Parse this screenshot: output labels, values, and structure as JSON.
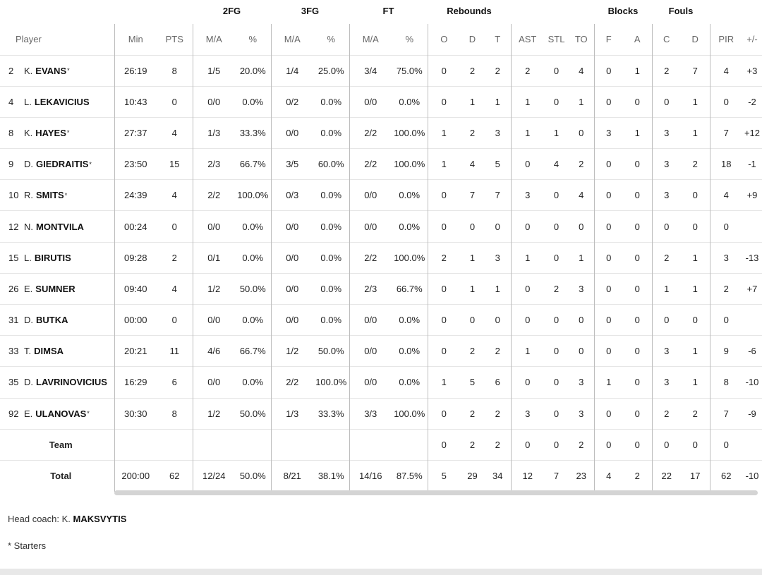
{
  "group_headers": {
    "two_fg": "2FG",
    "three_fg": "3FG",
    "ft": "FT",
    "rebounds": "Rebounds",
    "blocks": "Blocks",
    "fouls": "Fouls"
  },
  "columns": {
    "player": "Player",
    "min": "Min",
    "pts": "PTS",
    "fg2_ma": "M/A",
    "fg2_pct": "%",
    "fg3_ma": "M/A",
    "fg3_pct": "%",
    "ft_ma": "M/A",
    "ft_pct": "%",
    "reb_o": "O",
    "reb_d": "D",
    "reb_t": "T",
    "ast": "AST",
    "stl": "STL",
    "to": "TO",
    "blk_f": "F",
    "blk_a": "A",
    "foul_c": "C",
    "foul_d": "D",
    "pir": "PIR",
    "pm": "+/-"
  },
  "players": [
    {
      "num": "2",
      "initial": "K.",
      "name": "EVANS",
      "starter": true,
      "min": "26:19",
      "pts": "8",
      "fg2_ma": "1/5",
      "fg2_pct": "20.0%",
      "fg3_ma": "1/4",
      "fg3_pct": "25.0%",
      "ft_ma": "3/4",
      "ft_pct": "75.0%",
      "reb_o": "0",
      "reb_d": "2",
      "reb_t": "2",
      "ast": "2",
      "stl": "0",
      "to": "4",
      "blk_f": "0",
      "blk_a": "1",
      "foul_c": "2",
      "foul_d": "7",
      "pir": "4",
      "pm": "+3"
    },
    {
      "num": "4",
      "initial": "L.",
      "name": "LEKAVICIUS",
      "starter": false,
      "min": "10:43",
      "pts": "0",
      "fg2_ma": "0/0",
      "fg2_pct": "0.0%",
      "fg3_ma": "0/2",
      "fg3_pct": "0.0%",
      "ft_ma": "0/0",
      "ft_pct": "0.0%",
      "reb_o": "0",
      "reb_d": "1",
      "reb_t": "1",
      "ast": "1",
      "stl": "0",
      "to": "1",
      "blk_f": "0",
      "blk_a": "0",
      "foul_c": "0",
      "foul_d": "1",
      "pir": "0",
      "pm": "-2"
    },
    {
      "num": "8",
      "initial": "K.",
      "name": "HAYES",
      "starter": true,
      "min": "27:37",
      "pts": "4",
      "fg2_ma": "1/3",
      "fg2_pct": "33.3%",
      "fg3_ma": "0/0",
      "fg3_pct": "0.0%",
      "ft_ma": "2/2",
      "ft_pct": "100.0%",
      "reb_o": "1",
      "reb_d": "2",
      "reb_t": "3",
      "ast": "1",
      "stl": "1",
      "to": "0",
      "blk_f": "3",
      "blk_a": "1",
      "foul_c": "3",
      "foul_d": "1",
      "pir": "7",
      "pm": "+12"
    },
    {
      "num": "9",
      "initial": "D.",
      "name": "GIEDRAITIS",
      "starter": true,
      "min": "23:50",
      "pts": "15",
      "fg2_ma": "2/3",
      "fg2_pct": "66.7%",
      "fg3_ma": "3/5",
      "fg3_pct": "60.0%",
      "ft_ma": "2/2",
      "ft_pct": "100.0%",
      "reb_o": "1",
      "reb_d": "4",
      "reb_t": "5",
      "ast": "0",
      "stl": "4",
      "to": "2",
      "blk_f": "0",
      "blk_a": "0",
      "foul_c": "3",
      "foul_d": "2",
      "pir": "18",
      "pm": "-1"
    },
    {
      "num": "10",
      "initial": "R.",
      "name": "SMITS",
      "starter": true,
      "min": "24:39",
      "pts": "4",
      "fg2_ma": "2/2",
      "fg2_pct": "100.0%",
      "fg3_ma": "0/3",
      "fg3_pct": "0.0%",
      "ft_ma": "0/0",
      "ft_pct": "0.0%",
      "reb_o": "0",
      "reb_d": "7",
      "reb_t": "7",
      "ast": "3",
      "stl": "0",
      "to": "4",
      "blk_f": "0",
      "blk_a": "0",
      "foul_c": "3",
      "foul_d": "0",
      "pir": "4",
      "pm": "+9"
    },
    {
      "num": "12",
      "initial": "N.",
      "name": "MONTVILA",
      "starter": false,
      "min": "00:24",
      "pts": "0",
      "fg2_ma": "0/0",
      "fg2_pct": "0.0%",
      "fg3_ma": "0/0",
      "fg3_pct": "0.0%",
      "ft_ma": "0/0",
      "ft_pct": "0.0%",
      "reb_o": "0",
      "reb_d": "0",
      "reb_t": "0",
      "ast": "0",
      "stl": "0",
      "to": "0",
      "blk_f": "0",
      "blk_a": "0",
      "foul_c": "0",
      "foul_d": "0",
      "pir": "0",
      "pm": ""
    },
    {
      "num": "15",
      "initial": "L.",
      "name": "BIRUTIS",
      "starter": false,
      "min": "09:28",
      "pts": "2",
      "fg2_ma": "0/1",
      "fg2_pct": "0.0%",
      "fg3_ma": "0/0",
      "fg3_pct": "0.0%",
      "ft_ma": "2/2",
      "ft_pct": "100.0%",
      "reb_o": "2",
      "reb_d": "1",
      "reb_t": "3",
      "ast": "1",
      "stl": "0",
      "to": "1",
      "blk_f": "0",
      "blk_a": "0",
      "foul_c": "2",
      "foul_d": "1",
      "pir": "3",
      "pm": "-13"
    },
    {
      "num": "26",
      "initial": "E.",
      "name": "SUMNER",
      "starter": false,
      "min": "09:40",
      "pts": "4",
      "fg2_ma": "1/2",
      "fg2_pct": "50.0%",
      "fg3_ma": "0/0",
      "fg3_pct": "0.0%",
      "ft_ma": "2/3",
      "ft_pct": "66.7%",
      "reb_o": "0",
      "reb_d": "1",
      "reb_t": "1",
      "ast": "0",
      "stl": "2",
      "to": "3",
      "blk_f": "0",
      "blk_a": "0",
      "foul_c": "1",
      "foul_d": "1",
      "pir": "2",
      "pm": "+7"
    },
    {
      "num": "31",
      "initial": "D.",
      "name": "BUTKA",
      "starter": false,
      "min": "00:00",
      "pts": "0",
      "fg2_ma": "0/0",
      "fg2_pct": "0.0%",
      "fg3_ma": "0/0",
      "fg3_pct": "0.0%",
      "ft_ma": "0/0",
      "ft_pct": "0.0%",
      "reb_o": "0",
      "reb_d": "0",
      "reb_t": "0",
      "ast": "0",
      "stl": "0",
      "to": "0",
      "blk_f": "0",
      "blk_a": "0",
      "foul_c": "0",
      "foul_d": "0",
      "pir": "0",
      "pm": ""
    },
    {
      "num": "33",
      "initial": "T.",
      "name": "DIMSA",
      "starter": false,
      "min": "20:21",
      "pts": "11",
      "fg2_ma": "4/6",
      "fg2_pct": "66.7%",
      "fg3_ma": "1/2",
      "fg3_pct": "50.0%",
      "ft_ma": "0/0",
      "ft_pct": "0.0%",
      "reb_o": "0",
      "reb_d": "2",
      "reb_t": "2",
      "ast": "1",
      "stl": "0",
      "to": "0",
      "blk_f": "0",
      "blk_a": "0",
      "foul_c": "3",
      "foul_d": "1",
      "pir": "9",
      "pm": "-6"
    },
    {
      "num": "35",
      "initial": "D.",
      "name": "LAVRINOVICIUS",
      "starter": false,
      "min": "16:29",
      "pts": "6",
      "fg2_ma": "0/0",
      "fg2_pct": "0.0%",
      "fg3_ma": "2/2",
      "fg3_pct": "100.0%",
      "ft_ma": "0/0",
      "ft_pct": "0.0%",
      "reb_o": "1",
      "reb_d": "5",
      "reb_t": "6",
      "ast": "0",
      "stl": "0",
      "to": "3",
      "blk_f": "1",
      "blk_a": "0",
      "foul_c": "3",
      "foul_d": "1",
      "pir": "8",
      "pm": "-10"
    },
    {
      "num": "92",
      "initial": "E.",
      "name": "ULANOVAS",
      "starter": true,
      "min": "30:30",
      "pts": "8",
      "fg2_ma": "1/2",
      "fg2_pct": "50.0%",
      "fg3_ma": "1/3",
      "fg3_pct": "33.3%",
      "ft_ma": "3/3",
      "ft_pct": "100.0%",
      "reb_o": "0",
      "reb_d": "2",
      "reb_t": "2",
      "ast": "3",
      "stl": "0",
      "to": "3",
      "blk_f": "0",
      "blk_a": "0",
      "foul_c": "2",
      "foul_d": "2",
      "pir": "7",
      "pm": "-9"
    }
  ],
  "team_row": {
    "label": "Team",
    "min": "",
    "pts": "",
    "fg2_ma": "",
    "fg2_pct": "",
    "fg3_ma": "",
    "fg3_pct": "",
    "ft_ma": "",
    "ft_pct": "",
    "reb_o": "0",
    "reb_d": "2",
    "reb_t": "2",
    "ast": "0",
    "stl": "0",
    "to": "2",
    "blk_f": "0",
    "blk_a": "0",
    "foul_c": "0",
    "foul_d": "0",
    "pir": "0",
    "pm": ""
  },
  "total_row": {
    "label": "Total",
    "min": "200:00",
    "pts": "62",
    "fg2_ma": "12/24",
    "fg2_pct": "50.0%",
    "fg3_ma": "8/21",
    "fg3_pct": "38.1%",
    "ft_ma": "14/16",
    "ft_pct": "87.5%",
    "reb_o": "5",
    "reb_d": "29",
    "reb_t": "34",
    "ast": "12",
    "stl": "7",
    "to": "23",
    "blk_f": "4",
    "blk_a": "2",
    "foul_c": "22",
    "foul_d": "17",
    "pir": "62",
    "pm": "-10"
  },
  "footer": {
    "coach_label": "Head coach:",
    "coach_initial": "K.",
    "coach_name": "MAKSVYTIS",
    "starters_note": "* Starters"
  }
}
